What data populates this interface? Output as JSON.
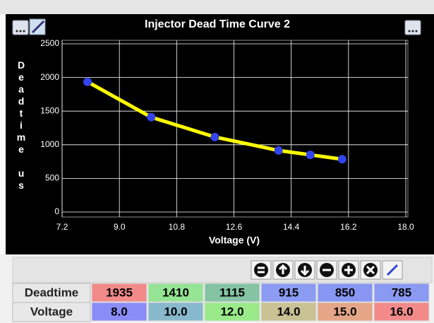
{
  "chart_data": {
    "type": "line",
    "title": "Injector Dead Time Curve 2",
    "xlabel": "Voltage (V)",
    "ylabel": "Deadtime us",
    "x": [
      8,
      10,
      12,
      14,
      15,
      16
    ],
    "series": [
      {
        "name": "Deadtime",
        "color": "#ffff00",
        "marker_color": "#3344ee",
        "values": [
          1935,
          1410,
          1115,
          915,
          850,
          785
        ]
      }
    ],
    "xlim": [
      7.2,
      18
    ],
    "xticks": [
      7.2,
      {
        "value": 9,
        "label": "9.0"
      },
      10.8,
      12.6,
      14.4,
      16.2,
      {
        "value": 18,
        "label": "18.0"
      }
    ],
    "ylim": [
      0,
      2500
    ],
    "yticks": [
      0,
      500,
      1000,
      1500,
      2000,
      2500
    ],
    "grid": true
  },
  "table": {
    "rows": [
      {
        "label": "Deadtime",
        "cells": [
          "1935",
          "1410",
          "1115",
          "915",
          "850",
          "785"
        ],
        "colors": [
          "#f28a8a",
          "#94e494",
          "#84c4a4",
          "#8c9cf2",
          "#8696f2",
          "#8a9af2"
        ]
      },
      {
        "label": "Voltage",
        "cells": [
          "8.0",
          "10.0",
          "12.0",
          "14.0",
          "15.0",
          "16.0"
        ],
        "colors": [
          "#8a8cf8",
          "#88b8cc",
          "#9aea8a",
          "#c8c294",
          "#e4a686",
          "#f28a8a"
        ]
      }
    ]
  }
}
